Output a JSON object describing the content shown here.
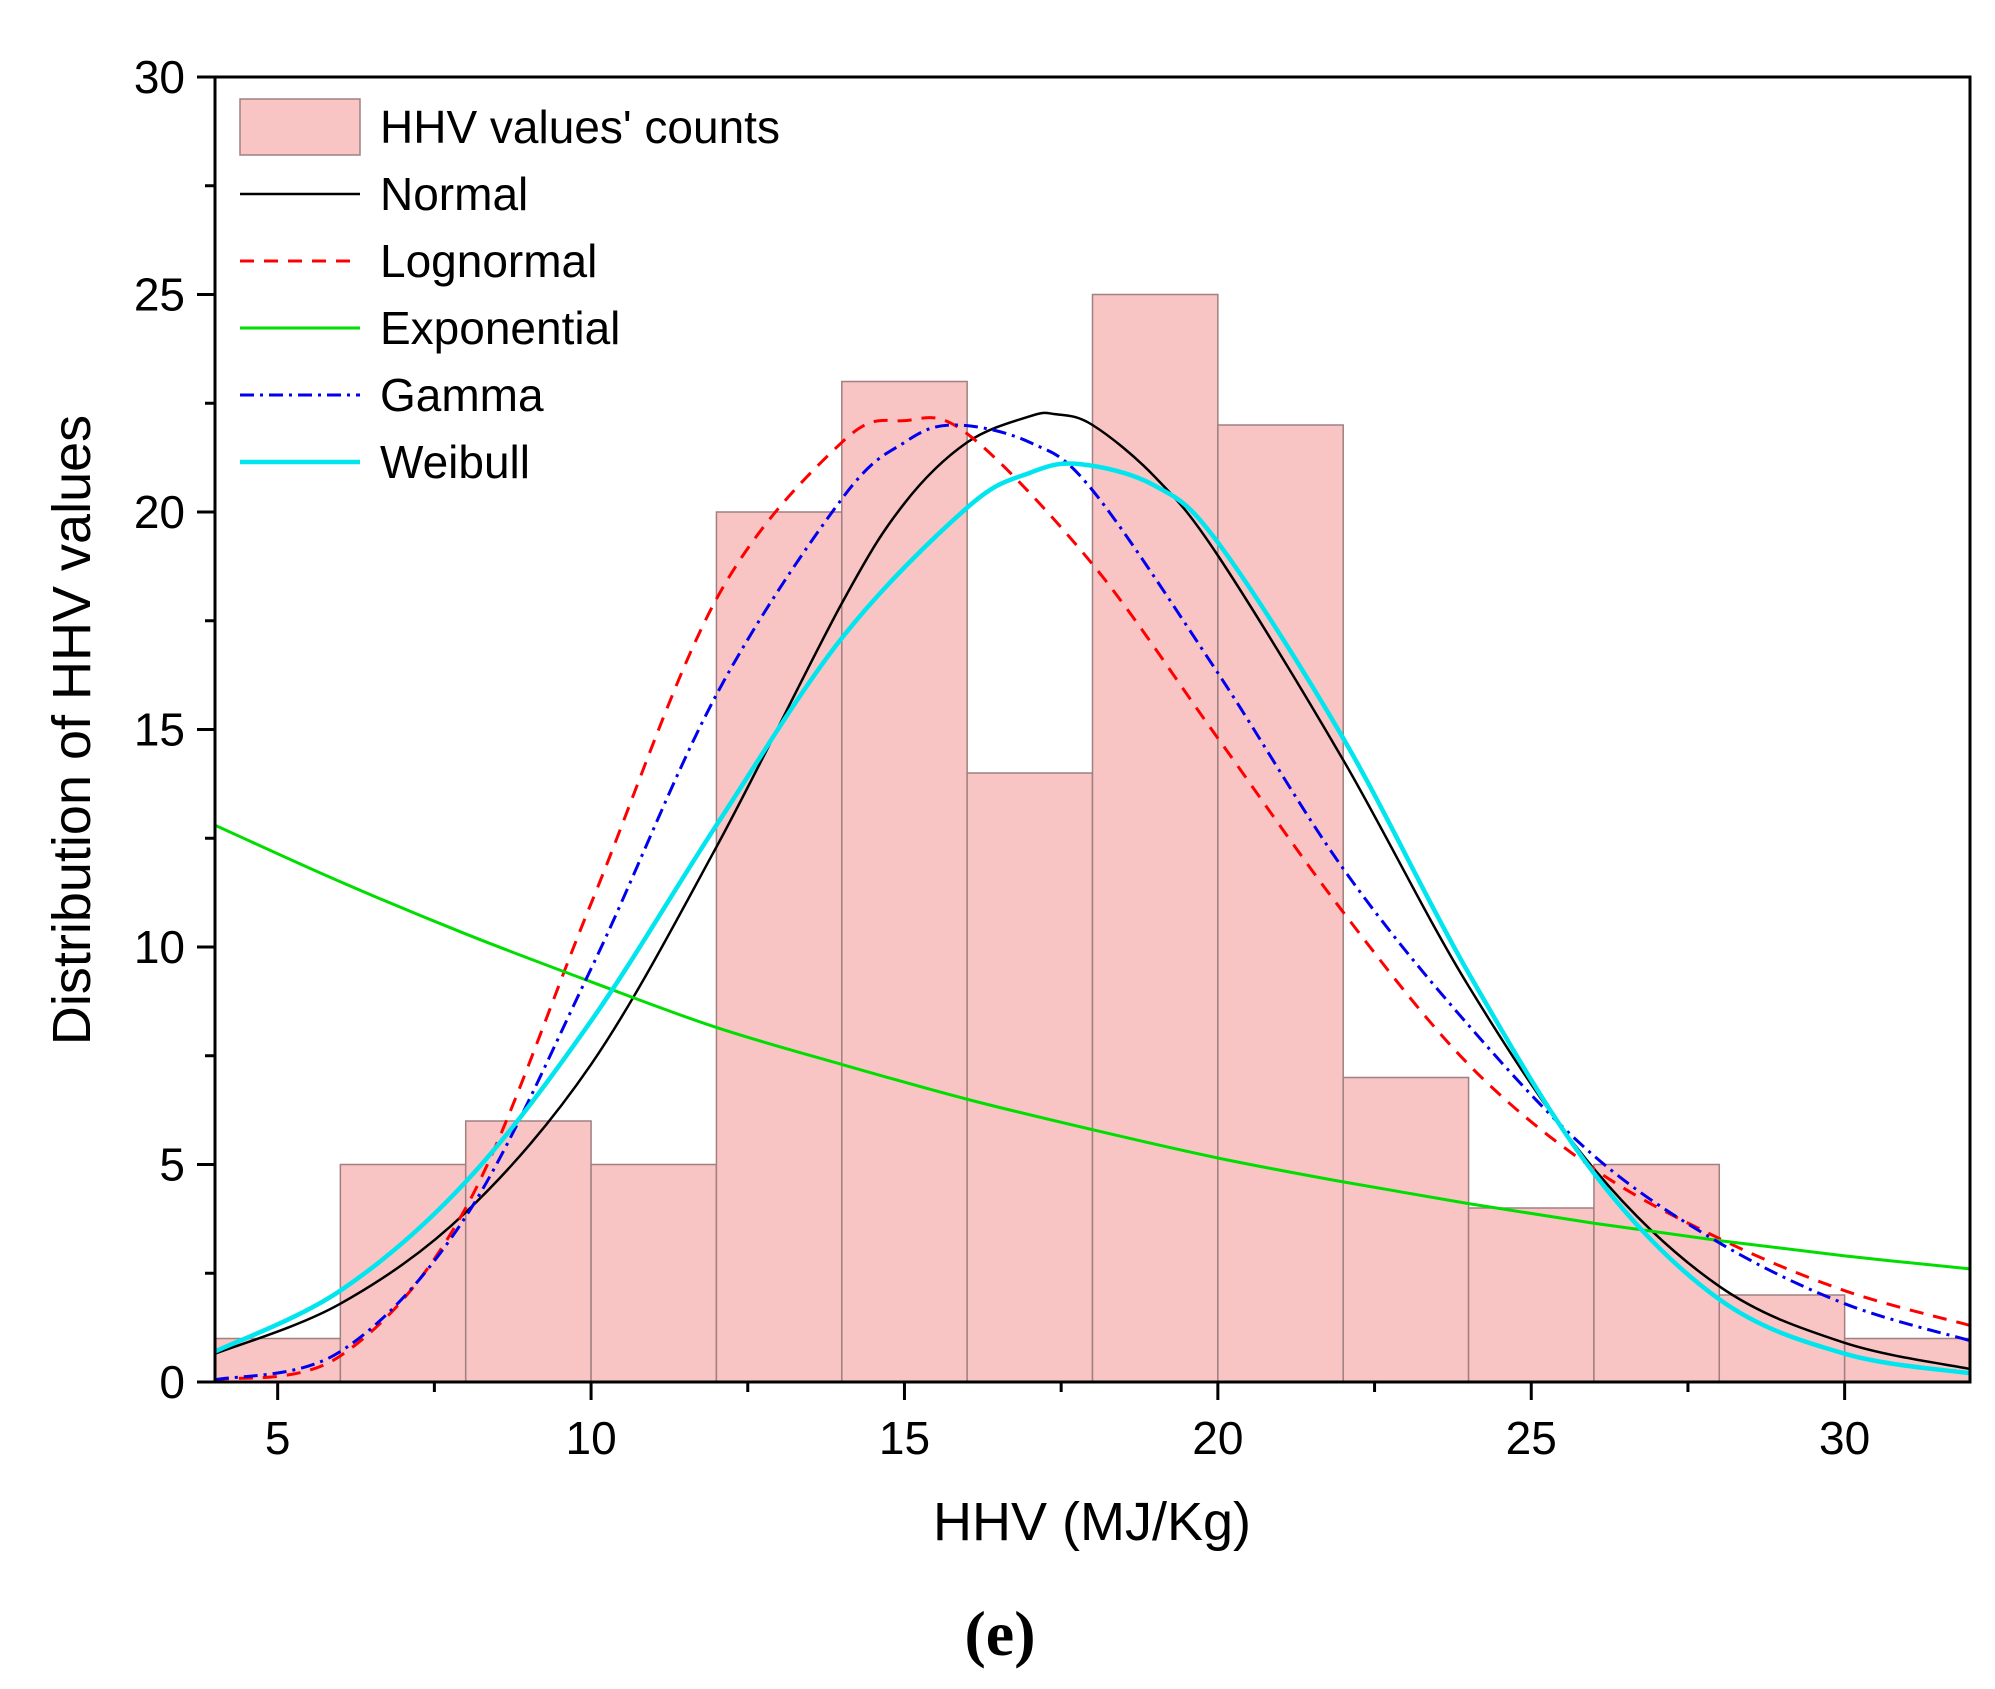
{
  "chart_data": {
    "type": "bar",
    "title": "",
    "panel_label": "(e)",
    "xlabel": "HHV (MJ/Kg)",
    "ylabel": "Distribution of HHV values",
    "xlim": [
      4,
      32
    ],
    "ylim": [
      0,
      30
    ],
    "xticks": [
      5,
      10,
      15,
      20,
      25,
      30
    ],
    "yticks": [
      0,
      5,
      10,
      15,
      20,
      25,
      30
    ],
    "histogram": {
      "name": "HHV values' counts",
      "color": "#f9c4c4",
      "edge_color": "#a08080",
      "bin_edges": [
        4,
        6,
        8,
        10,
        12,
        14,
        16,
        18,
        20,
        22,
        24,
        26,
        28,
        30,
        32
      ],
      "counts": [
        1,
        5,
        6,
        5,
        20,
        23,
        14,
        25,
        22,
        7,
        4,
        5,
        2,
        1
      ]
    },
    "series": [
      {
        "name": "Normal",
        "color": "#000000",
        "dash": "",
        "width": 2.5,
        "x": [
          4,
          6,
          8,
          10,
          12,
          14,
          15,
          16,
          17,
          17.4,
          18,
          19,
          20,
          22,
          24,
          26,
          28,
          30,
          32
        ],
        "y": [
          0.65,
          1.8,
          3.9,
          7.3,
          12.3,
          17.9,
          20.2,
          21.6,
          22.2,
          22.25,
          22.0,
          20.8,
          19.0,
          14.3,
          9.1,
          4.9,
          2.2,
          0.9,
          0.3
        ]
      },
      {
        "name": "Lognormal",
        "color": "#ff0000",
        "dash": "14,10",
        "width": 3,
        "x": [
          4,
          6,
          8,
          10,
          12,
          14,
          15,
          16,
          18,
          20,
          22,
          24,
          26,
          28,
          30,
          32
        ],
        "y": [
          0.05,
          0.6,
          4.0,
          11.0,
          18.0,
          21.6,
          22.1,
          21.8,
          18.8,
          14.8,
          10.8,
          7.3,
          4.9,
          3.3,
          2.1,
          1.3
        ]
      },
      {
        "name": "Exponential",
        "color": "#00dd00",
        "dash": "",
        "width": 3,
        "x": [
          4,
          6,
          8,
          10,
          12,
          14,
          16,
          18,
          20,
          22,
          24,
          26,
          28,
          30,
          32
        ],
        "y": [
          12.8,
          11.5,
          10.3,
          9.2,
          8.15,
          7.3,
          6.5,
          5.8,
          5.15,
          4.6,
          4.1,
          3.65,
          3.25,
          2.9,
          2.6
        ]
      },
      {
        "name": "Gamma",
        "color": "#0000ee",
        "dash": "14,6,3,6",
        "width": 3,
        "x": [
          4,
          6,
          8,
          10,
          12,
          14,
          15,
          15.8,
          17,
          18,
          20,
          22,
          24,
          26,
          28,
          30,
          32
        ],
        "y": [
          0.05,
          0.7,
          3.8,
          9.5,
          15.8,
          20.3,
          21.6,
          22.0,
          21.6,
          20.5,
          16.3,
          11.8,
          8.2,
          5.2,
          3.2,
          1.8,
          0.95
        ]
      },
      {
        "name": "Weibull",
        "color": "#00e5ee",
        "dash": "",
        "width": 4.5,
        "x": [
          4,
          6,
          8,
          10,
          12,
          14,
          16,
          17,
          17.8,
          19,
          20,
          22,
          24,
          26,
          28,
          30,
          32
        ],
        "y": [
          0.7,
          2.1,
          4.6,
          8.3,
          12.8,
          17.1,
          20.1,
          20.9,
          21.1,
          20.6,
          19.3,
          14.8,
          9.4,
          4.8,
          1.9,
          0.65,
          0.2
        ]
      }
    ]
  }
}
